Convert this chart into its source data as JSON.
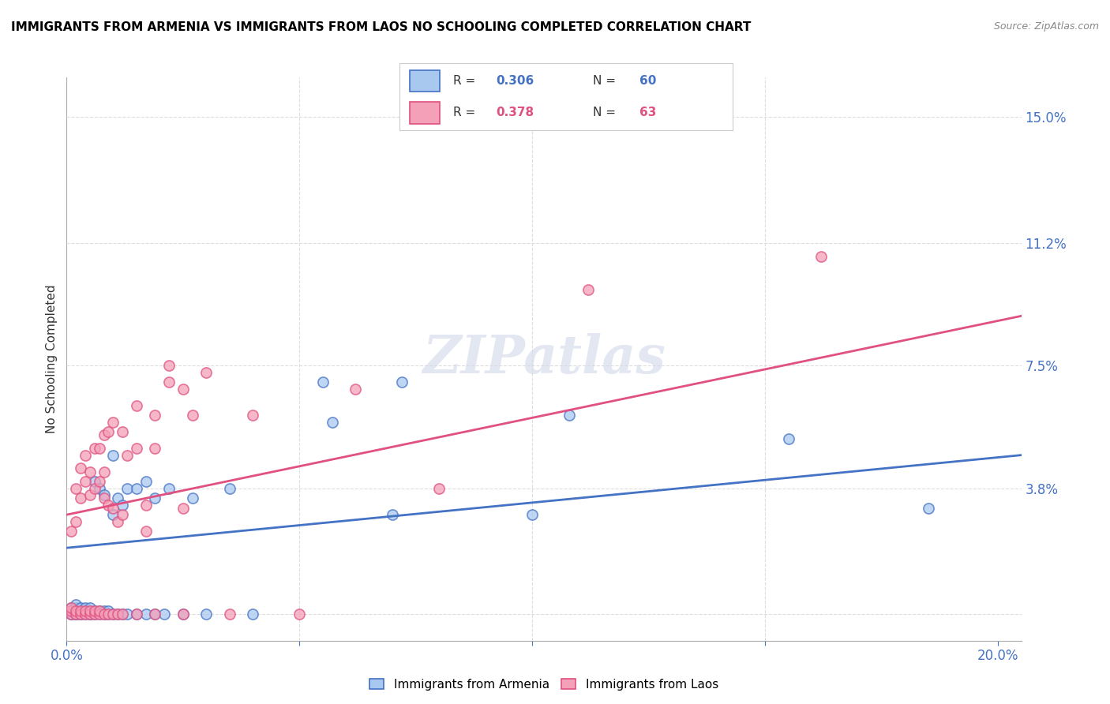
{
  "title": "IMMIGRANTS FROM ARMENIA VS IMMIGRANTS FROM LAOS NO SCHOOLING COMPLETED CORRELATION CHART",
  "source": "Source: ZipAtlas.com",
  "ylabel": "No Schooling Completed",
  "yticks": [
    0.0,
    0.038,
    0.075,
    0.112,
    0.15
  ],
  "ytick_labels": [
    "",
    "3.8%",
    "7.5%",
    "11.2%",
    "15.0%"
  ],
  "xlim": [
    0.0,
    0.205
  ],
  "ylim": [
    -0.008,
    0.162
  ],
  "armenia_color": "#a8c8f0",
  "laos_color": "#f4a0b8",
  "armenia_edge": "#4472C4",
  "laos_edge": "#E05080",
  "armenia_line_color": "#4472C4",
  "laos_line_color": "#E05080",
  "armenia_line": [
    [
      0.0,
      0.02
    ],
    [
      0.205,
      0.048
    ]
  ],
  "laos_line": [
    [
      0.0,
      0.03
    ],
    [
      0.205,
      0.09
    ]
  ],
  "tick_color": "#4472C4",
  "grid_color": "#dddddd",
  "title_fontsize": 11,
  "source_fontsize": 9,
  "watermark": "ZIPatlas",
  "armenia_scatter": [
    [
      0.001,
      0.0
    ],
    [
      0.001,
      0.001
    ],
    [
      0.001,
      0.002
    ],
    [
      0.001,
      0.0
    ],
    [
      0.002,
      0.0
    ],
    [
      0.002,
      0.001
    ],
    [
      0.002,
      0.002
    ],
    [
      0.002,
      0.0
    ],
    [
      0.002,
      0.003
    ],
    [
      0.003,
      0.0
    ],
    [
      0.003,
      0.001
    ],
    [
      0.003,
      0.002
    ],
    [
      0.003,
      0.0
    ],
    [
      0.004,
      0.0
    ],
    [
      0.004,
      0.001
    ],
    [
      0.004,
      0.002
    ],
    [
      0.005,
      0.0
    ],
    [
      0.005,
      0.001
    ],
    [
      0.005,
      0.002
    ],
    [
      0.005,
      0.0
    ],
    [
      0.006,
      0.0
    ],
    [
      0.006,
      0.001
    ],
    [
      0.006,
      0.04
    ],
    [
      0.007,
      0.0
    ],
    [
      0.007,
      0.001
    ],
    [
      0.007,
      0.038
    ],
    [
      0.008,
      0.0
    ],
    [
      0.008,
      0.001
    ],
    [
      0.008,
      0.036
    ],
    [
      0.009,
      0.0
    ],
    [
      0.009,
      0.001
    ],
    [
      0.01,
      0.0
    ],
    [
      0.01,
      0.03
    ],
    [
      0.01,
      0.048
    ],
    [
      0.011,
      0.0
    ],
    [
      0.011,
      0.035
    ],
    [
      0.012,
      0.0
    ],
    [
      0.012,
      0.033
    ],
    [
      0.013,
      0.0
    ],
    [
      0.013,
      0.038
    ],
    [
      0.015,
      0.0
    ],
    [
      0.015,
      0.038
    ],
    [
      0.017,
      0.0
    ],
    [
      0.017,
      0.04
    ],
    [
      0.019,
      0.0
    ],
    [
      0.019,
      0.035
    ],
    [
      0.021,
      0.0
    ],
    [
      0.022,
      0.038
    ],
    [
      0.025,
      0.0
    ],
    [
      0.027,
      0.035
    ],
    [
      0.03,
      0.0
    ],
    [
      0.035,
      0.038
    ],
    [
      0.04,
      0.0
    ],
    [
      0.055,
      0.07
    ],
    [
      0.057,
      0.058
    ],
    [
      0.07,
      0.03
    ],
    [
      0.072,
      0.07
    ],
    [
      0.1,
      0.03
    ],
    [
      0.108,
      0.06
    ],
    [
      0.155,
      0.053
    ],
    [
      0.185,
      0.032
    ]
  ],
  "laos_scatter": [
    [
      0.001,
      0.0
    ],
    [
      0.001,
      0.001
    ],
    [
      0.001,
      0.002
    ],
    [
      0.001,
      0.025
    ],
    [
      0.002,
      0.0
    ],
    [
      0.002,
      0.001
    ],
    [
      0.002,
      0.028
    ],
    [
      0.002,
      0.038
    ],
    [
      0.003,
      0.0
    ],
    [
      0.003,
      0.001
    ],
    [
      0.003,
      0.035
    ],
    [
      0.003,
      0.044
    ],
    [
      0.004,
      0.0
    ],
    [
      0.004,
      0.001
    ],
    [
      0.004,
      0.04
    ],
    [
      0.004,
      0.048
    ],
    [
      0.005,
      0.0
    ],
    [
      0.005,
      0.001
    ],
    [
      0.005,
      0.036
    ],
    [
      0.005,
      0.043
    ],
    [
      0.006,
      0.0
    ],
    [
      0.006,
      0.001
    ],
    [
      0.006,
      0.038
    ],
    [
      0.006,
      0.05
    ],
    [
      0.007,
      0.0
    ],
    [
      0.007,
      0.001
    ],
    [
      0.007,
      0.04
    ],
    [
      0.007,
      0.05
    ],
    [
      0.008,
      0.0
    ],
    [
      0.008,
      0.035
    ],
    [
      0.008,
      0.043
    ],
    [
      0.008,
      0.054
    ],
    [
      0.009,
      0.0
    ],
    [
      0.009,
      0.033
    ],
    [
      0.009,
      0.055
    ],
    [
      0.01,
      0.0
    ],
    [
      0.01,
      0.032
    ],
    [
      0.01,
      0.058
    ],
    [
      0.011,
      0.0
    ],
    [
      0.011,
      0.028
    ],
    [
      0.012,
      0.0
    ],
    [
      0.012,
      0.03
    ],
    [
      0.012,
      0.055
    ],
    [
      0.013,
      0.048
    ],
    [
      0.015,
      0.0
    ],
    [
      0.015,
      0.05
    ],
    [
      0.015,
      0.063
    ],
    [
      0.017,
      0.025
    ],
    [
      0.017,
      0.033
    ],
    [
      0.019,
      0.0
    ],
    [
      0.019,
      0.05
    ],
    [
      0.019,
      0.06
    ],
    [
      0.022,
      0.07
    ],
    [
      0.022,
      0.075
    ],
    [
      0.025,
      0.0
    ],
    [
      0.025,
      0.032
    ],
    [
      0.025,
      0.068
    ],
    [
      0.027,
      0.06
    ],
    [
      0.03,
      0.073
    ],
    [
      0.035,
      0.0
    ],
    [
      0.04,
      0.06
    ],
    [
      0.05,
      0.0
    ],
    [
      0.062,
      0.068
    ],
    [
      0.08,
      0.038
    ],
    [
      0.112,
      0.098
    ],
    [
      0.162,
      0.108
    ]
  ]
}
